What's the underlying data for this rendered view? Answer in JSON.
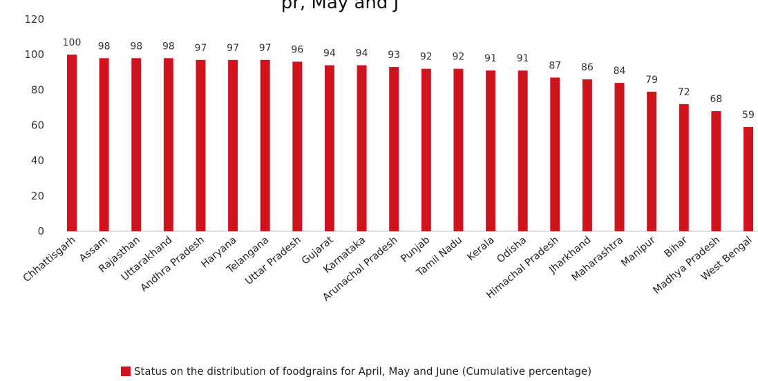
{
  "chart_data": {
    "type": "bar",
    "title_fragment": "pr, May and J",
    "categories": [
      "Chhattisgarh",
      "Assam",
      "Rajasthan",
      "Uttarakhand",
      "Andhra Pradesh",
      "Haryana",
      "Telangana",
      "Uttar Pradesh",
      "Gujarat",
      "Karnataka",
      "Arunachal Pradesh",
      "Punjab",
      "Tamil Nadu",
      "Kerala",
      "Odisha",
      "Himachal Pradesh",
      "Jharkhand",
      "Maharashtra",
      "Manipur",
      "Bihar",
      "Madhya Pradesh",
      "West Bengal"
    ],
    "series": [
      {
        "name": "Status on the distribution of foodgrains for April, May and June (Cumulative percentage)",
        "values": [
          100,
          98,
          98,
          98,
          97,
          97,
          97,
          96,
          94,
          94,
          93,
          92,
          92,
          91,
          91,
          87,
          86,
          84,
          79,
          72,
          68,
          59
        ],
        "color": "#d0141e"
      }
    ],
    "y_ticks": [
      "0",
      "20",
      "40",
      "60",
      "80",
      "100",
      "120"
    ],
    "ylim": [
      0,
      120
    ],
    "xlabel": "",
    "ylabel": "",
    "grid": false,
    "legend_position": "bottom-center"
  }
}
